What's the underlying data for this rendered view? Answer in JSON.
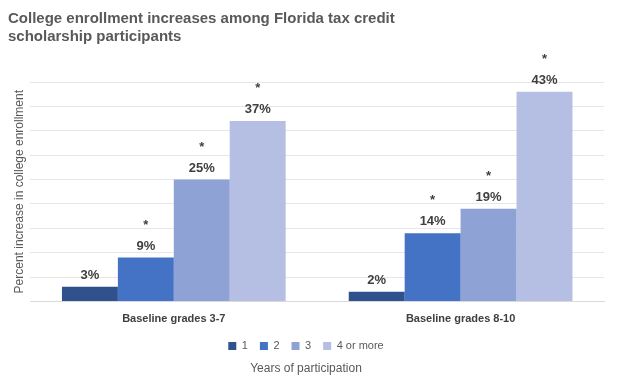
{
  "chart_data": {
    "type": "bar",
    "title": [
      "College enrollment increases among Florida tax credit",
      "scholarship participants"
    ],
    "ylabel": "Percent increase in college enrollment",
    "legend_title": "Years of participation",
    "categories": [
      "Baseline grades 3-7",
      "Baseline grades 8-10"
    ],
    "series": [
      {
        "name": "1",
        "color": "#2f528f",
        "values": [
          3,
          2
        ],
        "value_labels": [
          "3%",
          "2%"
        ],
        "annotations": [
          null,
          null
        ]
      },
      {
        "name": "2",
        "color": "#4472c4",
        "values": [
          9,
          14
        ],
        "value_labels": [
          "9%",
          "14%"
        ],
        "annotations": [
          "*",
          "*"
        ]
      },
      {
        "name": "3",
        "color": "#8fa2d6",
        "values": [
          25,
          19
        ],
        "value_labels": [
          "25%",
          "19%"
        ],
        "annotations": [
          "*",
          "*"
        ]
      },
      {
        "name": "4 or more",
        "color": "#b4bfe3",
        "values": [
          37,
          43
        ],
        "value_labels": [
          "37%",
          "43%"
        ],
        "annotations": [
          "*",
          "*"
        ]
      }
    ],
    "ylim": [
      0,
      45
    ],
    "yticks": [
      0,
      5,
      10,
      15,
      20,
      25,
      30,
      35,
      40,
      45
    ],
    "grid": true,
    "legend": "bottom",
    "data_labels": true,
    "tick_labels": "x"
  }
}
